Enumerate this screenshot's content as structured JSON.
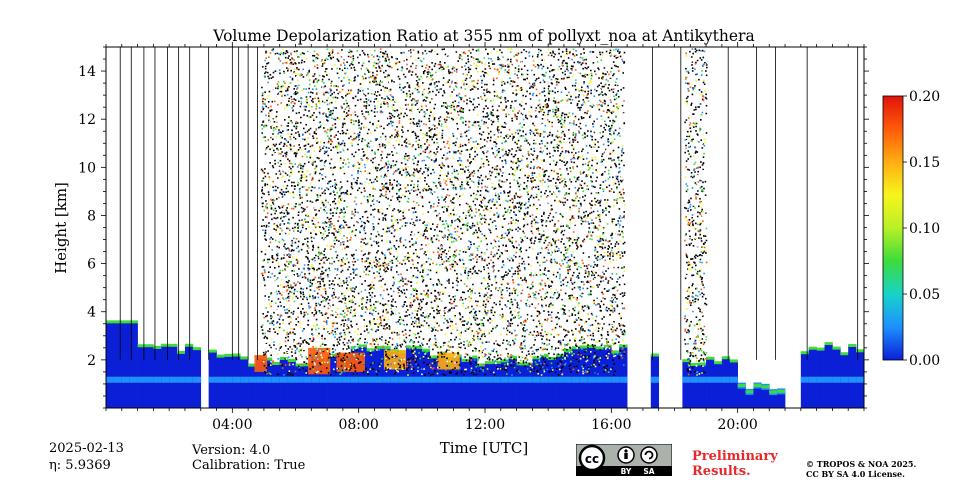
{
  "chart_data": {
    "type": "heatmap",
    "title": "Volume Depolarization Ratio at 355 nm of pollyxt_noa at Antikythera",
    "xlabel": "Time [UTC]",
    "ylabel": "Height [km]",
    "xlim": [
      0,
      24
    ],
    "ylim": [
      0,
      15
    ],
    "x_ticks": [
      4,
      8,
      12,
      16,
      20
    ],
    "x_tick_labels": [
      "04:00",
      "08:00",
      "12:00",
      "16:00",
      "20:00"
    ],
    "y_ticks": [
      2,
      4,
      6,
      8,
      10,
      12,
      14
    ],
    "y_tick_labels": [
      "2",
      "4",
      "6",
      "8",
      "10",
      "12",
      "14"
    ],
    "colorbar": {
      "range": [
        0.0,
        0.2
      ],
      "ticks": [
        0.0,
        0.05,
        0.1,
        0.15,
        0.2
      ],
      "tick_labels": [
        "0.00",
        "0.05",
        "0.10",
        "0.15",
        "0.20"
      ],
      "colors": [
        "#0a1fd6",
        "#1e90ff",
        "#17d3c9",
        "#3ddc3a",
        "#b8f026",
        "#f7f51c",
        "#ffae12",
        "#ff5a0a",
        "#e0140a"
      ]
    },
    "noisy_periods_hours": [
      [
        4.9,
        16.4
      ],
      [
        18.3,
        19.0
      ]
    ],
    "profile_lines_hours": [
      0.45,
      0.8,
      1.2,
      1.55,
      1.95,
      2.3,
      2.65,
      3.25,
      4.0,
      4.2,
      4.5,
      4.8,
      17.3,
      18.2,
      19.7,
      20.6,
      21.2,
      22.2,
      23.8
    ],
    "data_gaps_hours": [
      [
        2.8,
        3.1
      ],
      [
        16.45,
        17.0
      ],
      [
        17.5,
        18.1
      ],
      [
        21.45,
        21.8
      ]
    ],
    "cloud_patches": [
      {
        "t0": 4.7,
        "t1": 5.1,
        "h0": 1.5,
        "h1": 2.2,
        "value": 0.18
      },
      {
        "t0": 6.4,
        "t1": 7.1,
        "h0": 1.4,
        "h1": 2.5,
        "value": 0.17
      },
      {
        "t0": 7.3,
        "t1": 8.2,
        "h0": 1.5,
        "h1": 2.3,
        "value": 0.18
      },
      {
        "t0": 8.8,
        "t1": 9.5,
        "h0": 1.6,
        "h1": 2.4,
        "value": 0.15
      },
      {
        "t0": 10.5,
        "t1": 11.2,
        "h0": 1.6,
        "h1": 2.3,
        "value": 0.14
      }
    ],
    "eta_label": "η: 5.9369"
  },
  "footer": {
    "date": "2025-02-13",
    "eta": "η: 5.9369",
    "version": "Version: 4.0",
    "calibration": "Calibration: True",
    "preliminary_line1": "Preliminary",
    "preliminary_line2": "Results.",
    "copyright_line1": "© TROPOS & NOA 2025.",
    "copyright_line2": "CC BY SA 4.0 License."
  },
  "license_badge": {
    "text_cc": "cc",
    "text_by": "BY",
    "text_sa": "SA"
  }
}
